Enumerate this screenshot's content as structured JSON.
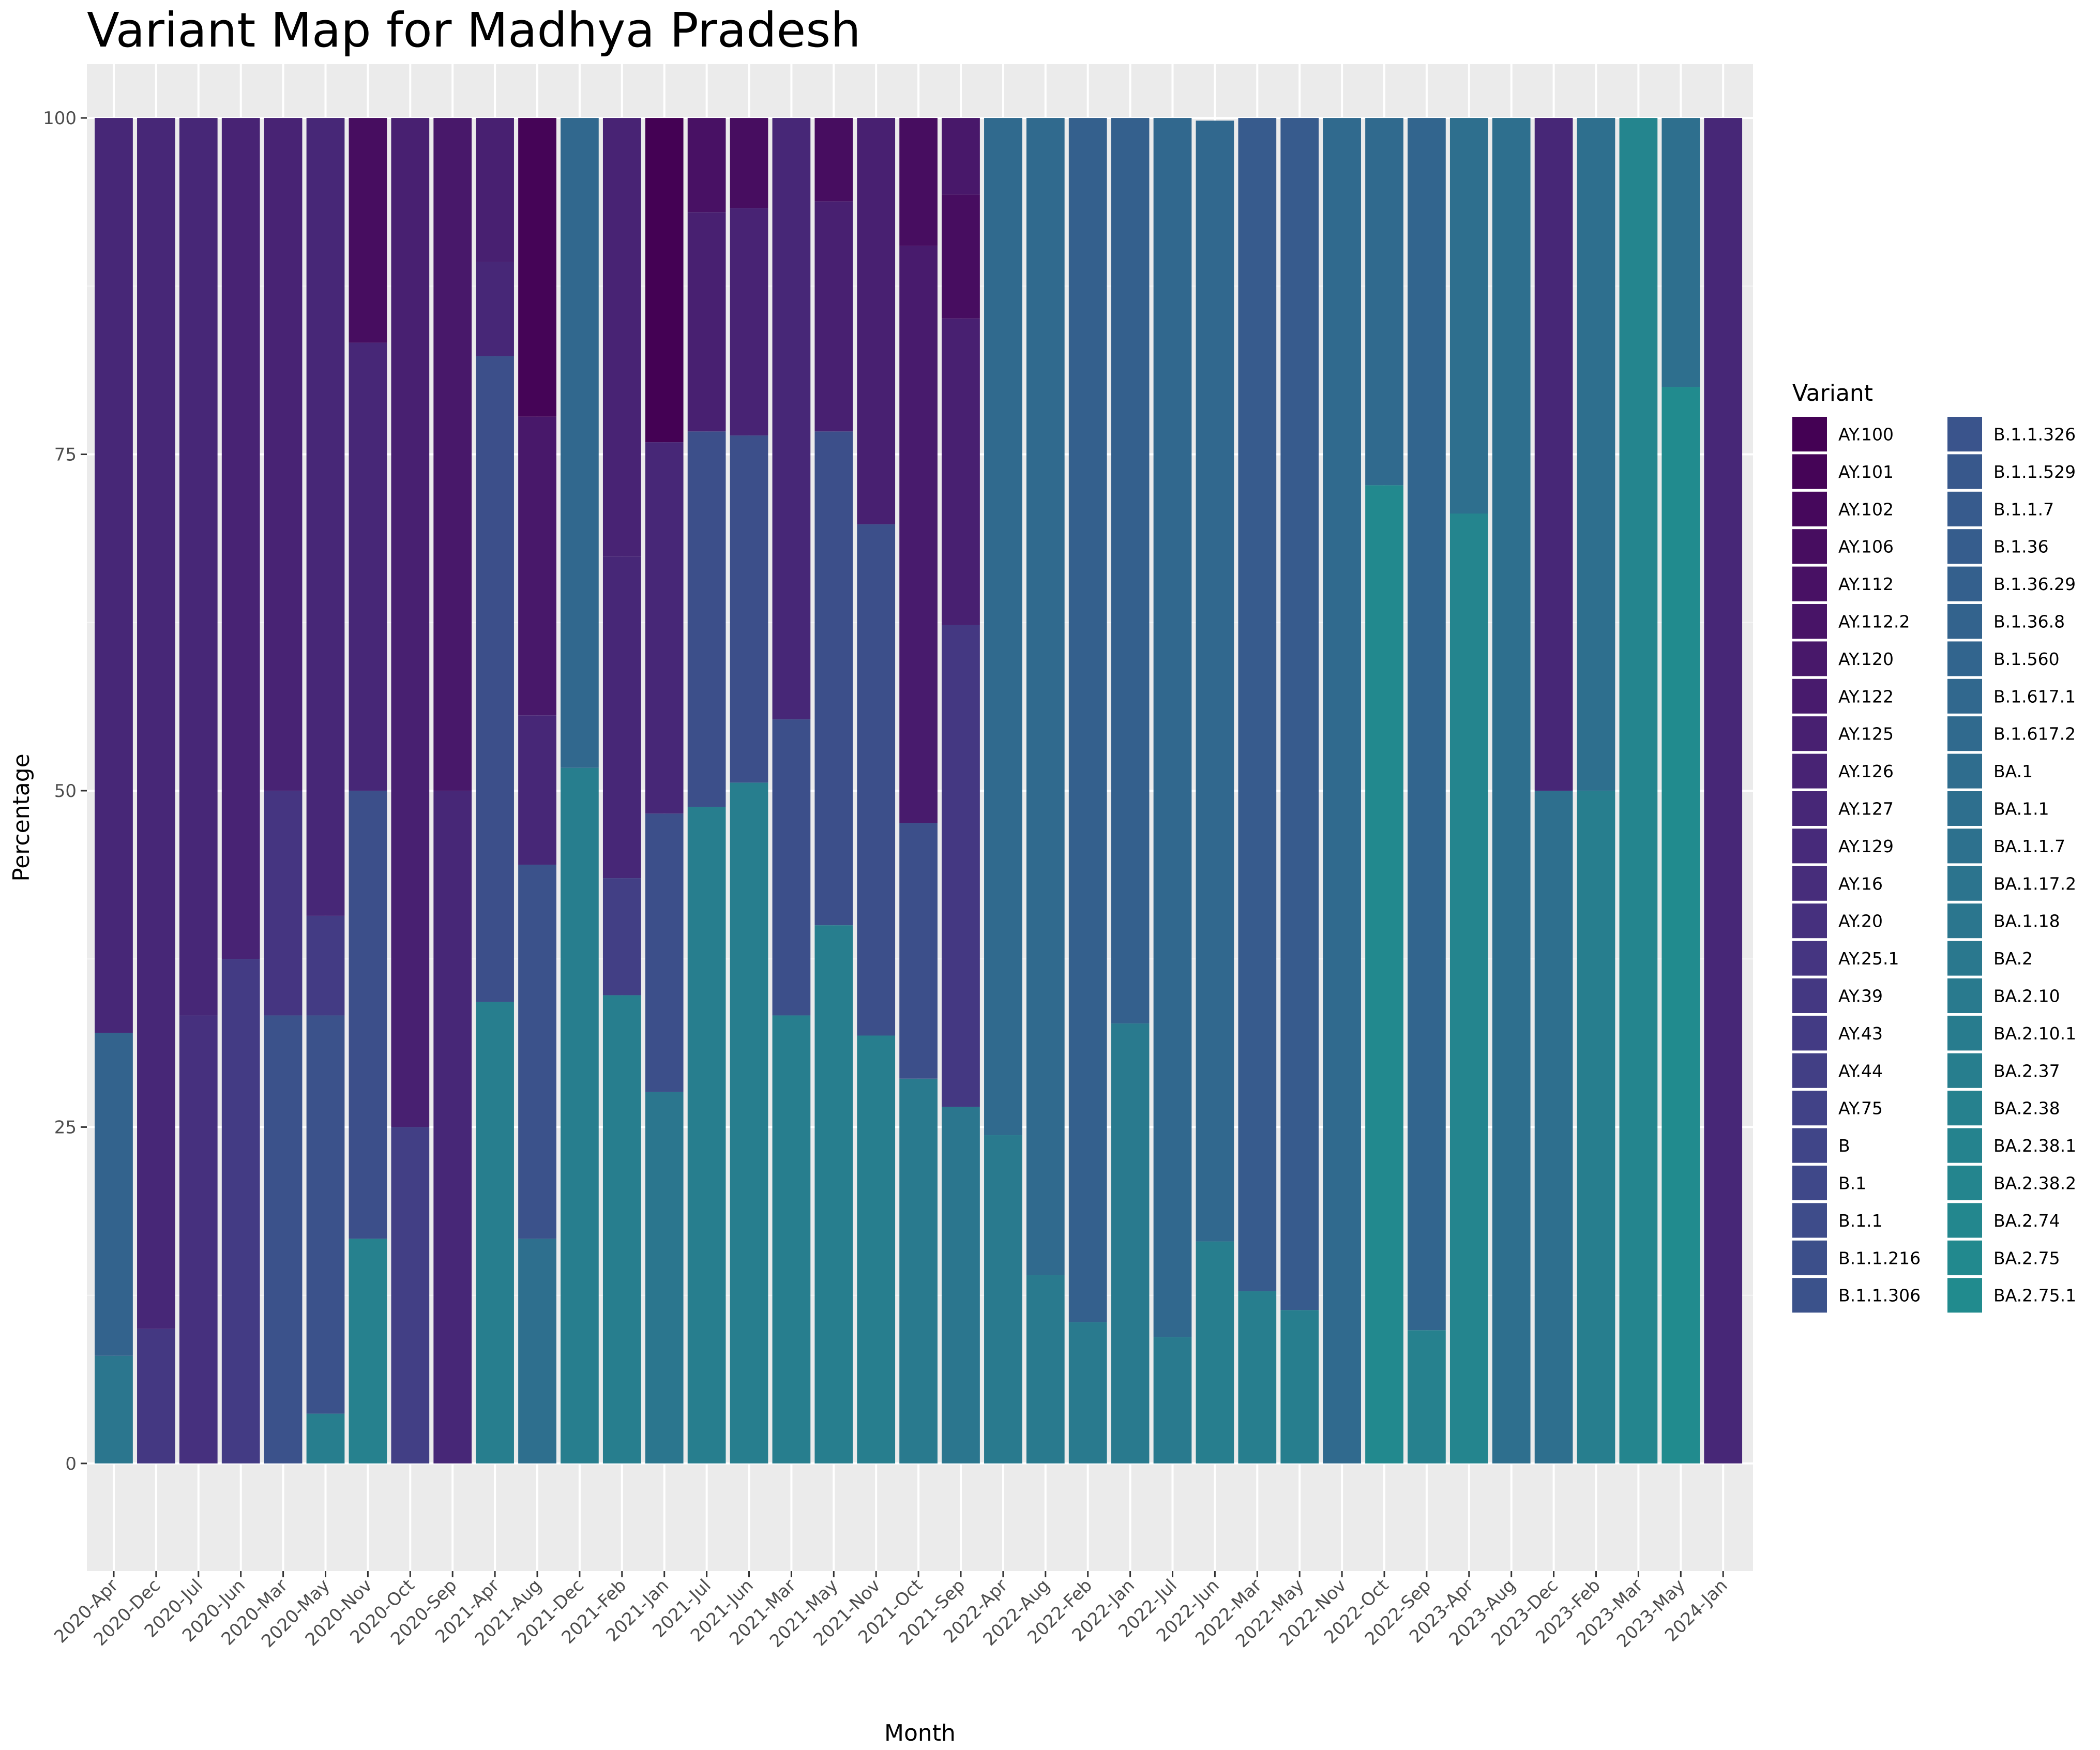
{
  "chart_data": {
    "type": "bar",
    "stacked": true,
    "title": "Variant Map for Madhya Pradesh",
    "xlabel": "Month",
    "ylabel": "Percentage",
    "ylim": [
      -8,
      104
    ],
    "yticks": [
      0,
      25,
      50,
      75,
      100
    ],
    "grid": true,
    "legend_title": "Variant",
    "legend_position": "right",
    "categories": [
      "2020-Apr",
      "2020-Dec",
      "2020-Jul",
      "2020-Jun",
      "2020-Mar",
      "2020-May",
      "2020-Nov",
      "2020-Oct",
      "2020-Sep",
      "2021-Apr",
      "2021-Aug",
      "2021-Dec",
      "2021-Feb",
      "2021-Jan",
      "2021-Jul",
      "2021-Jun",
      "2021-Mar",
      "2021-May",
      "2021-Nov",
      "2021-Oct",
      "2021-Sep",
      "2022-Apr",
      "2022-Aug",
      "2022-Feb",
      "2022-Jan",
      "2022-Jul",
      "2022-Jun",
      "2022-Mar",
      "2022-May",
      "2022-Nov",
      "2022-Oct",
      "2022-Sep",
      "2023-Apr",
      "2023-Aug",
      "2023-Dec",
      "2023-Feb",
      "2023-Mar",
      "2023-May",
      "2024-Jan"
    ],
    "variants": [
      {
        "name": "AY.100",
        "color": "#440154"
      },
      {
        "name": "AY.101",
        "color": "#450457"
      },
      {
        "name": "AY.102",
        "color": "#46085c"
      },
      {
        "name": "AY.106",
        "color": "#470d60"
      },
      {
        "name": "AY.112",
        "color": "#481164"
      },
      {
        "name": "AY.112.2",
        "color": "#481467"
      },
      {
        "name": "AY.120",
        "color": "#48186a"
      },
      {
        "name": "AY.122",
        "color": "#481b6d"
      },
      {
        "name": "AY.125",
        "color": "#482071"
      },
      {
        "name": "AY.126",
        "color": "#482374"
      },
      {
        "name": "AY.127",
        "color": "#472777"
      },
      {
        "name": "AY.129",
        "color": "#472a7a"
      },
      {
        "name": "AY.16",
        "color": "#472d7b"
      },
      {
        "name": "AY.20",
        "color": "#46307e"
      },
      {
        "name": "AY.25.1",
        "color": "#453581"
      },
      {
        "name": "AY.39",
        "color": "#443882"
      },
      {
        "name": "AY.43",
        "color": "#433b84"
      },
      {
        "name": "AY.44",
        "color": "#423f85"
      },
      {
        "name": "AY.75",
        "color": "#414287"
      },
      {
        "name": "B",
        "color": "#404588"
      },
      {
        "name": "B.1",
        "color": "#3f4889"
      },
      {
        "name": "B.1.1",
        "color": "#3e4c8a"
      },
      {
        "name": "B.1.1.216",
        "color": "#3c4f8a"
      },
      {
        "name": "B.1.1.306",
        "color": "#3b528b"
      },
      {
        "name": "B.1.1.326",
        "color": "#3a548c"
      },
      {
        "name": "B.1.1.529",
        "color": "#38588c"
      },
      {
        "name": "B.1.1.7",
        "color": "#375b8d"
      },
      {
        "name": "B.1.36",
        "color": "#365d8d"
      },
      {
        "name": "B.1.36.29",
        "color": "#34608d"
      },
      {
        "name": "B.1.36.8",
        "color": "#33638d"
      },
      {
        "name": "B.1.560",
        "color": "#32658e"
      },
      {
        "name": "B.1.617.1",
        "color": "#31688e"
      },
      {
        "name": "B.1.617.2",
        "color": "#306a8e"
      },
      {
        "name": "BA.1",
        "color": "#2f6d8e"
      },
      {
        "name": "BA.1.1",
        "color": "#2e6f8e"
      },
      {
        "name": "BA.1.1.7",
        "color": "#2d718e"
      },
      {
        "name": "BA.1.17.2",
        "color": "#2c748e"
      },
      {
        "name": "BA.1.18",
        "color": "#2b768e"
      },
      {
        "name": "BA.2",
        "color": "#2a788e"
      },
      {
        "name": "BA.2.10",
        "color": "#297a8e"
      },
      {
        "name": "BA.2.10.1",
        "color": "#287c8e"
      },
      {
        "name": "BA.2.37",
        "color": "#277e8e"
      },
      {
        "name": "BA.2.38",
        "color": "#26818e"
      },
      {
        "name": "BA.2.38.1",
        "color": "#25838e"
      },
      {
        "name": "BA.2.38.2",
        "color": "#24858e"
      },
      {
        "name": "BA.2.74",
        "color": "#23878e"
      },
      {
        "name": "BA.2.75",
        "color": "#22898e"
      },
      {
        "name": "BA.2.75.1",
        "color": "#218b8e"
      }
    ],
    "series": [
      {
        "month": "2020-Apr",
        "segments": [
          [
            "BA.1.18",
            8
          ],
          [
            "B.1.36.8",
            24
          ],
          [
            "AY.127",
            68
          ]
        ]
      },
      {
        "month": "2020-Dec",
        "segments": [
          [
            "AY.39",
            10
          ],
          [
            "AY.127",
            90
          ]
        ]
      },
      {
        "month": "2020-Jul",
        "segments": [
          [
            "AY.20",
            33.3
          ],
          [
            "AY.127",
            66.7
          ]
        ]
      },
      {
        "month": "2020-Jun",
        "segments": [
          [
            "AY.43",
            37.5
          ],
          [
            "AY.126",
            62.5
          ]
        ]
      },
      {
        "month": "2020-Mar",
        "segments": [
          [
            "B.1.1.306",
            33.3
          ],
          [
            "AY.25.1",
            16.7
          ],
          [
            "AY.126",
            50
          ]
        ]
      },
      {
        "month": "2020-May",
        "segments": [
          [
            "BA.2.37",
            3.7
          ],
          [
            "B.1.1.306",
            29.6
          ],
          [
            "AY.43",
            7.4
          ],
          [
            "AY.127",
            59.3
          ]
        ]
      },
      {
        "month": "2020-Nov",
        "segments": [
          [
            "BA.2.38",
            16.7
          ],
          [
            "B.1.1.216",
            33.3
          ],
          [
            "AY.127",
            33.3
          ],
          [
            "AY.106",
            16.7
          ]
        ]
      },
      {
        "month": "2020-Oct",
        "segments": [
          [
            "AY.44",
            25
          ],
          [
            "AY.125",
            75
          ]
        ]
      },
      {
        "month": "2020-Sep",
        "segments": [
          [
            "AY.127",
            50
          ],
          [
            "AY.120",
            50
          ]
        ]
      },
      {
        "month": "2021-Apr",
        "segments": [
          [
            "BA.2.37",
            34.3
          ],
          [
            "B.1.1.216",
            48
          ],
          [
            "AY.127",
            7
          ],
          [
            "AY.125",
            10.7
          ]
        ]
      },
      {
        "month": "2021-Aug",
        "segments": [
          [
            "BA.1.1",
            16.7
          ],
          [
            "B.1.1.306",
            27.8
          ],
          [
            "AY.127",
            11.1
          ],
          [
            "AY.120",
            22.2
          ],
          [
            "AY.101",
            22.2
          ]
        ]
      },
      {
        "month": "2021-Dec",
        "segments": [
          [
            "BA.2.37",
            51.7
          ],
          [
            "B.1.617.1",
            48.3
          ]
        ]
      },
      {
        "month": "2021-Feb",
        "segments": [
          [
            "BA.2.37",
            34.8
          ],
          [
            "AY.44",
            8.7
          ],
          [
            "AY.127",
            23.9
          ],
          [
            "AY.126",
            32.6
          ]
        ]
      },
      {
        "month": "2021-Jan",
        "segments": [
          [
            "BA.1.18",
            27.6
          ],
          [
            "B.1.1.216",
            20.7
          ],
          [
            "AY.127",
            27.6
          ],
          [
            "AY.100",
            24.1
          ]
        ]
      },
      {
        "month": "2021-Jul",
        "segments": [
          [
            "BA.2.37",
            48.8
          ],
          [
            "B.1.1.216",
            27.9
          ],
          [
            "AY.125",
            16.3
          ],
          [
            "AY.112",
            7
          ]
        ]
      },
      {
        "month": "2021-Jun",
        "segments": [
          [
            "BA.2.37",
            50.6
          ],
          [
            "B.1.1.216",
            25.8
          ],
          [
            "AY.126",
            16.9
          ],
          [
            "AY.106",
            6.7
          ]
        ]
      },
      {
        "month": "2021-Mar",
        "segments": [
          [
            "BA.2.37",
            33.3
          ],
          [
            "B.1.1.216",
            22
          ],
          [
            "AY.127",
            44.7
          ]
        ]
      },
      {
        "month": "2021-May",
        "segments": [
          [
            "BA.2.37",
            40
          ],
          [
            "B.1.1.216",
            36.7
          ],
          [
            "AY.125",
            17.1
          ],
          [
            "AY.106",
            6.2
          ]
        ]
      },
      {
        "month": "2021-Nov",
        "segments": [
          [
            "BA.2.37",
            31.8
          ],
          [
            "B.1.1.216",
            38
          ],
          [
            "AY.125",
            30.2
          ]
        ]
      },
      {
        "month": "2021-Oct",
        "segments": [
          [
            "BA.2.10",
            28.6
          ],
          [
            "B.1.1.216",
            19
          ],
          [
            "AY.122",
            42.9
          ],
          [
            "AY.106",
            9.5
          ]
        ]
      },
      {
        "month": "2021-Sep",
        "segments": [
          [
            "BA.1.18",
            26.5
          ],
          [
            "AY.39",
            35.8
          ],
          [
            "AY.125",
            22.8
          ],
          [
            "AY.106",
            9.2
          ],
          [
            "AY.120",
            5.7
          ]
        ]
      },
      {
        "month": "2022-Apr",
        "segments": [
          [
            "BA.2.10",
            24.4
          ],
          [
            "B.1.617.2",
            75.6
          ]
        ]
      },
      {
        "month": "2022-Aug",
        "segments": [
          [
            "BA.2.10",
            14
          ],
          [
            "B.1.617.2",
            86
          ]
        ]
      },
      {
        "month": "2022-Feb",
        "segments": [
          [
            "BA.2.10",
            10.5
          ],
          [
            "B.1.36.29",
            89.5
          ]
        ]
      },
      {
        "month": "2022-Jan",
        "segments": [
          [
            "BA.2.10",
            32.7
          ],
          [
            "B.1.36.29",
            67.3
          ]
        ]
      },
      {
        "month": "2022-Jul",
        "segments": [
          [
            "BA.2.10",
            9.4
          ],
          [
            "B.1.617.1",
            90.6
          ]
        ]
      },
      {
        "month": "2022-Jun",
        "segments": [
          [
            "BA.2.37",
            16.5
          ],
          [
            "B.1.617.1",
            83.3
          ]
        ]
      },
      {
        "month": "2022-Mar",
        "segments": [
          [
            "BA.2.37",
            12.8
          ],
          [
            "B.1.1.7",
            87.2
          ]
        ]
      },
      {
        "month": "2022-May",
        "segments": [
          [
            "BA.2.37",
            11.4
          ],
          [
            "B.1.1.7",
            88.6
          ]
        ]
      },
      {
        "month": "2022-Nov",
        "segments": [
          [
            "B.1.617.2",
            100
          ]
        ]
      },
      {
        "month": "2022-Oct",
        "segments": [
          [
            "BA.2.75",
            72.7
          ],
          [
            "B.1.617.2",
            27.3
          ]
        ]
      },
      {
        "month": "2022-Sep",
        "segments": [
          [
            "BA.2.38",
            9.9
          ],
          [
            "B.1.560",
            90.1
          ]
        ]
      },
      {
        "month": "2023-Apr",
        "segments": [
          [
            "BA.2.38.2",
            70.6
          ],
          [
            "BA.1.1",
            29.4
          ]
        ]
      },
      {
        "month": "2023-Aug",
        "segments": [
          [
            "BA.1.1",
            100
          ]
        ]
      },
      {
        "month": "2023-Dec",
        "segments": [
          [
            "BA.1.1",
            50
          ],
          [
            "AY.127",
            50
          ]
        ]
      },
      {
        "month": "2023-Feb",
        "segments": [
          [
            "BA.2.37",
            50
          ],
          [
            "BA.1.1",
            50
          ]
        ]
      },
      {
        "month": "2023-Mar",
        "segments": [
          [
            "BA.2.38.2",
            100
          ]
        ]
      },
      {
        "month": "2023-May",
        "segments": [
          [
            "BA.2.75.1",
            80
          ],
          [
            "BA.1.1",
            20
          ]
        ]
      },
      {
        "month": "2024-Jan",
        "segments": [
          [
            "AY.127",
            100
          ]
        ]
      }
    ]
  }
}
